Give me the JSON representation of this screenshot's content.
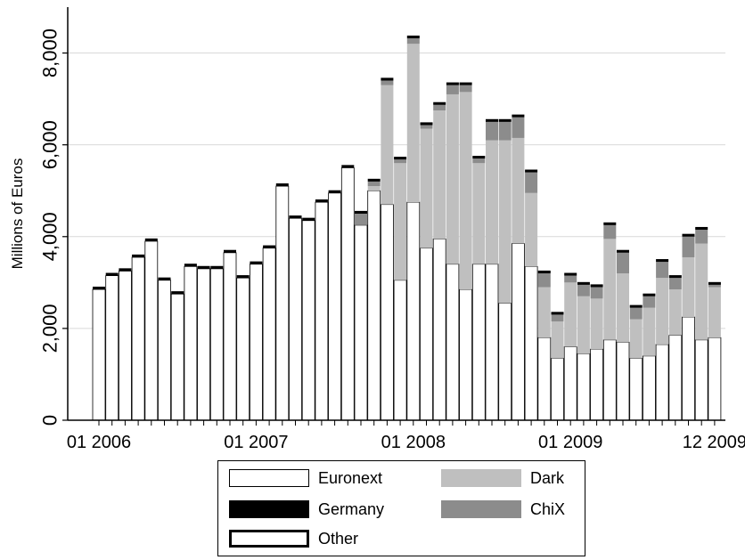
{
  "chart_data": {
    "type": "bar",
    "stacked": true,
    "ylabel": "Millions of Euros",
    "xlabel": "",
    "ylim": [
      0,
      9000
    ],
    "yticks": [
      "0",
      "2,000",
      "4,000",
      "6,000",
      "8,000"
    ],
    "ytick_values": [
      0,
      2000,
      4000,
      6000,
      8000
    ],
    "xtick_labels": [
      "01 2006",
      "01 2007",
      "01 2008",
      "01 2009",
      "12 2009"
    ],
    "xtick_months": [
      1,
      13,
      25,
      37,
      48
    ],
    "grid": true,
    "months": 48,
    "series": [
      {
        "name": "Euronext",
        "color": "#ffffff",
        "values": [
          2850,
          3150,
          3250,
          3550,
          3900,
          3050,
          2750,
          3350,
          3300,
          3300,
          3650,
          3100,
          3400,
          3750,
          5100,
          4400,
          4350,
          4750,
          4950,
          5500,
          4250,
          5000,
          4700,
          3050,
          4750,
          3750,
          3950,
          3400,
          2850,
          3400,
          3400,
          2550,
          3850,
          3350,
          1800,
          1350,
          1600,
          1450,
          1550,
          1750,
          1700,
          1350,
          1400,
          1650,
          1850,
          2250,
          1750,
          1800
        ]
      },
      {
        "name": "Dark",
        "color": "#bfbfbf",
        "values": [
          0,
          0,
          0,
          0,
          0,
          0,
          0,
          0,
          0,
          0,
          0,
          0,
          0,
          0,
          0,
          0,
          0,
          0,
          0,
          0,
          0,
          100,
          2600,
          2550,
          3450,
          2600,
          2800,
          3700,
          4300,
          2200,
          2700,
          3550,
          2300,
          1600,
          1100,
          800,
          1400,
          1250,
          1100,
          2200,
          1500,
          850,
          1050,
          1450,
          1000,
          1300,
          2100,
          1100
        ]
      },
      {
        "name": "ChiX",
        "color": "#8c8c8c",
        "values": [
          0,
          0,
          0,
          0,
          0,
          0,
          0,
          0,
          0,
          0,
          0,
          0,
          0,
          0,
          0,
          0,
          0,
          0,
          0,
          0,
          250,
          100,
          100,
          80,
          120,
          80,
          120,
          200,
          150,
          100,
          400,
          400,
          450,
          450,
          300,
          150,
          150,
          250,
          250,
          300,
          450,
          250,
          250,
          350,
          250,
          450,
          300,
          50
        ]
      },
      {
        "name": "Germany",
        "color": "#000000",
        "values": [
          60,
          60,
          60,
          60,
          60,
          60,
          60,
          60,
          60,
          60,
          60,
          60,
          60,
          60,
          60,
          60,
          60,
          60,
          60,
          60,
          60,
          60,
          60,
          60,
          60,
          60,
          60,
          60,
          60,
          60,
          60,
          60,
          60,
          60,
          60,
          60,
          60,
          60,
          60,
          60,
          60,
          60,
          60,
          60,
          60,
          60,
          60,
          60
        ]
      },
      {
        "name": "Other",
        "color": "#ffffff",
        "values": [
          0,
          0,
          0,
          0,
          0,
          0,
          0,
          0,
          0,
          0,
          0,
          0,
          0,
          0,
          0,
          0,
          0,
          0,
          0,
          0,
          0,
          0,
          0,
          0,
          0,
          0,
          0,
          0,
          0,
          0,
          0,
          0,
          0,
          0,
          0,
          0,
          0,
          0,
          0,
          0,
          0,
          0,
          0,
          0,
          0,
          0,
          0,
          0
        ]
      }
    ],
    "legend": {
      "placement": "bottom",
      "entries": [
        "Euronext",
        "Dark",
        "Germany",
        "ChiX",
        "Other"
      ]
    }
  }
}
